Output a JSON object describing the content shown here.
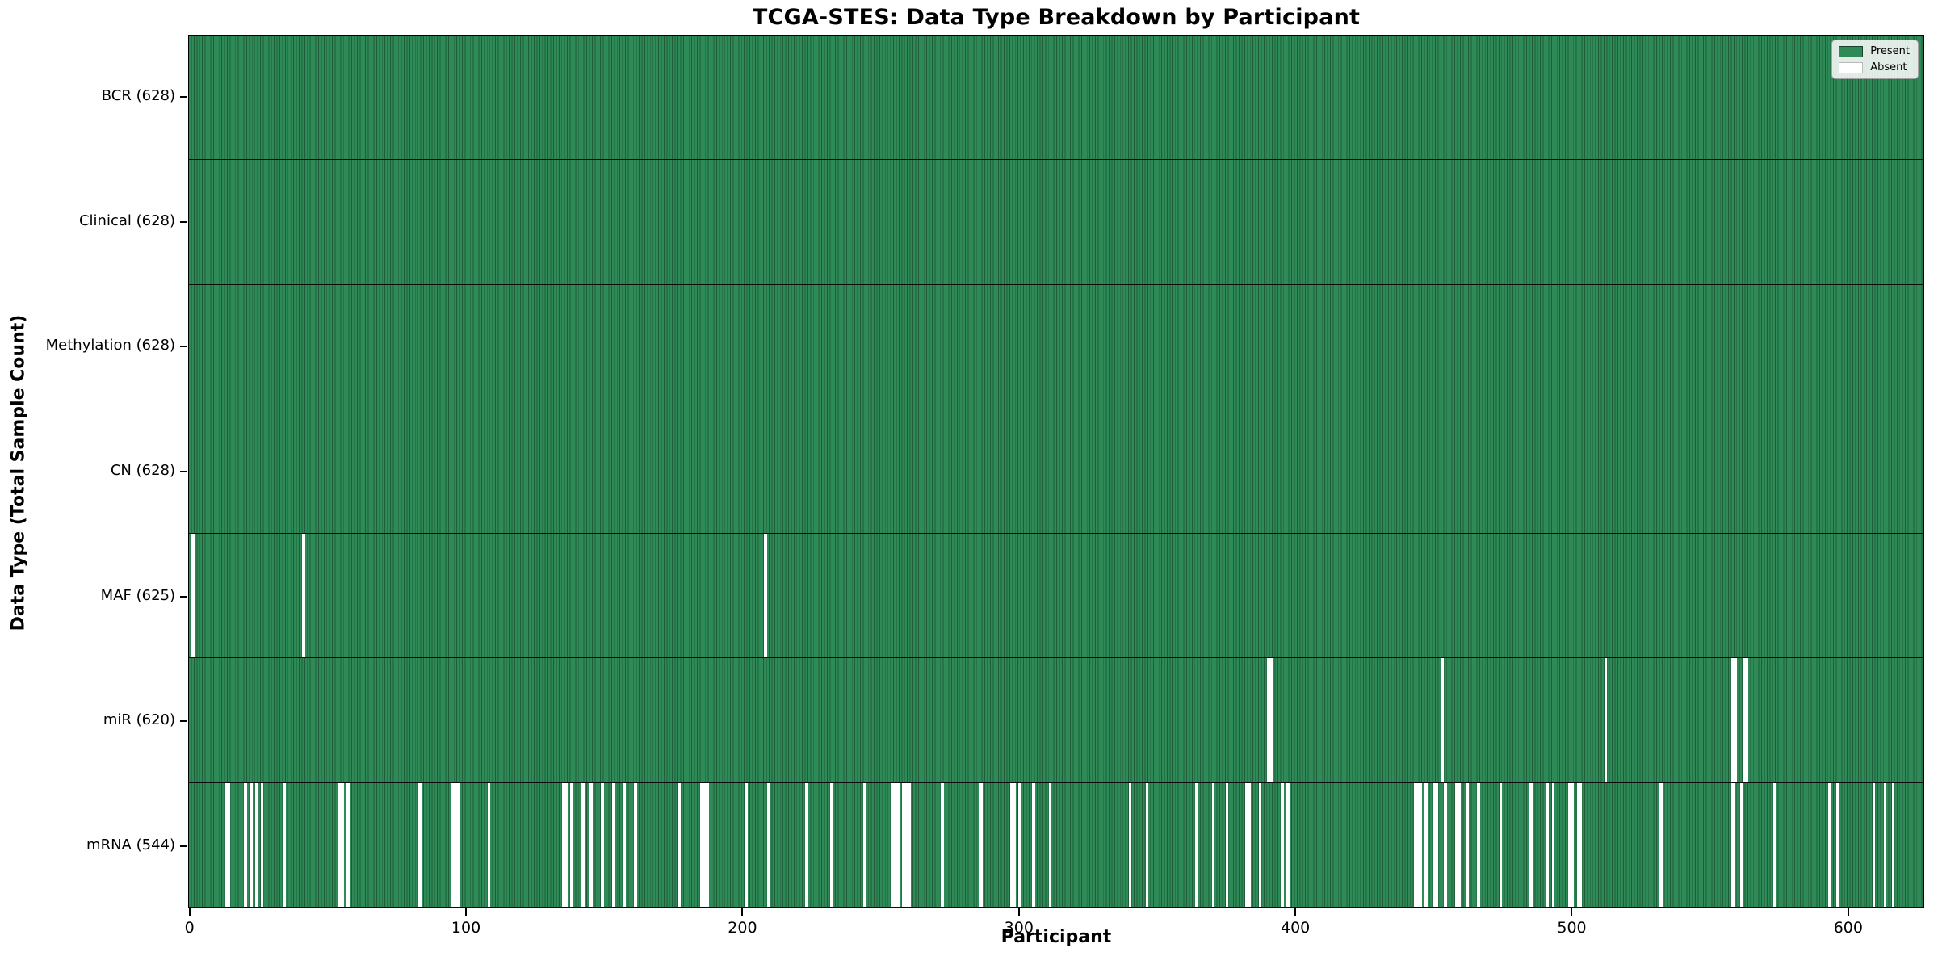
{
  "chart_data": {
    "type": "heatmap",
    "title": "TCGA-STES: Data Type Breakdown by Participant",
    "xlabel": "Participant",
    "ylabel": "Data Type (Total Sample Count)",
    "legend": [
      "Present",
      "Absent"
    ],
    "legend_position": "upper right",
    "grid": false,
    "n_participants": 628,
    "x_range": [
      0,
      627
    ],
    "x_ticks": [
      0,
      100,
      200,
      300,
      400,
      500,
      600
    ],
    "colors": {
      "present": "#2e8b57",
      "present_edge": "#1e5c3a",
      "absent": "#ffffff",
      "axis": "#000000",
      "legend_bg": "#fafafa",
      "legend_border": "#a3a3a3"
    },
    "rows": [
      {
        "name": "BCR",
        "label": "BCR (628)",
        "present_count": 628,
        "absent_participants": []
      },
      {
        "name": "Clinical",
        "label": "Clinical (628)",
        "present_count": 628,
        "absent_participants": []
      },
      {
        "name": "Methylation",
        "label": "Methylation (628)",
        "present_count": 628,
        "absent_participants": []
      },
      {
        "name": "CN",
        "label": "CN (628)",
        "present_count": 628,
        "absent_participants": []
      },
      {
        "name": "MAF",
        "label": "MAF (625)",
        "present_count": 625,
        "absent_participants": [
          1,
          41,
          208
        ]
      },
      {
        "name": "miR",
        "label": "miR (620)",
        "present_count": 620,
        "absent_participants": [
          390,
          391,
          453,
          512,
          558,
          559,
          562,
          563
        ]
      },
      {
        "name": "mRNA",
        "label": "mRNA (544)",
        "present_count": 544,
        "absent_participants": [
          13,
          14,
          20,
          22,
          24,
          26,
          34,
          54,
          55,
          57,
          83,
          95,
          96,
          97,
          108,
          135,
          136,
          138,
          142,
          145,
          149,
          153,
          157,
          161,
          177,
          185,
          186,
          187,
          201,
          209,
          223,
          232,
          244,
          254,
          255,
          256,
          258,
          259,
          260,
          272,
          286,
          297,
          298,
          300,
          305,
          311,
          340,
          346,
          364,
          370,
          375,
          382,
          383,
          387,
          395,
          397,
          443,
          444,
          445,
          447,
          450,
          451,
          454,
          458,
          459,
          462,
          466,
          474,
          485,
          491,
          493,
          499,
          500,
          502,
          503,
          532,
          558,
          561,
          573,
          593,
          596,
          609,
          613,
          616
        ]
      }
    ]
  }
}
